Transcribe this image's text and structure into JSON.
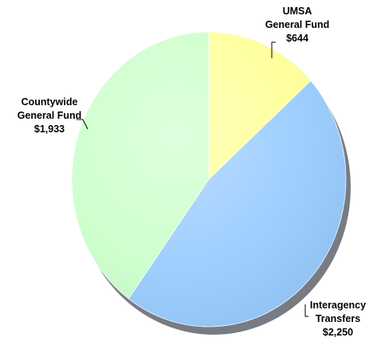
{
  "chart_data": {
    "type": "pie",
    "slices": [
      {
        "label_lines": [
          "UMSA",
          "General Fund"
        ],
        "value": 644,
        "value_label": "$644",
        "color": "#FFFF99"
      },
      {
        "label_lines": [
          "Interagency",
          "Transfers"
        ],
        "value": 2250,
        "value_label": "$2,250",
        "color": "#99CCFF"
      },
      {
        "label_lines": [
          "Countywide",
          "General Fund"
        ],
        "value": 1933,
        "value_label": "$1,933",
        "color": "#CCFFCC"
      }
    ],
    "start_at": "top",
    "direction": "clockwise"
  }
}
